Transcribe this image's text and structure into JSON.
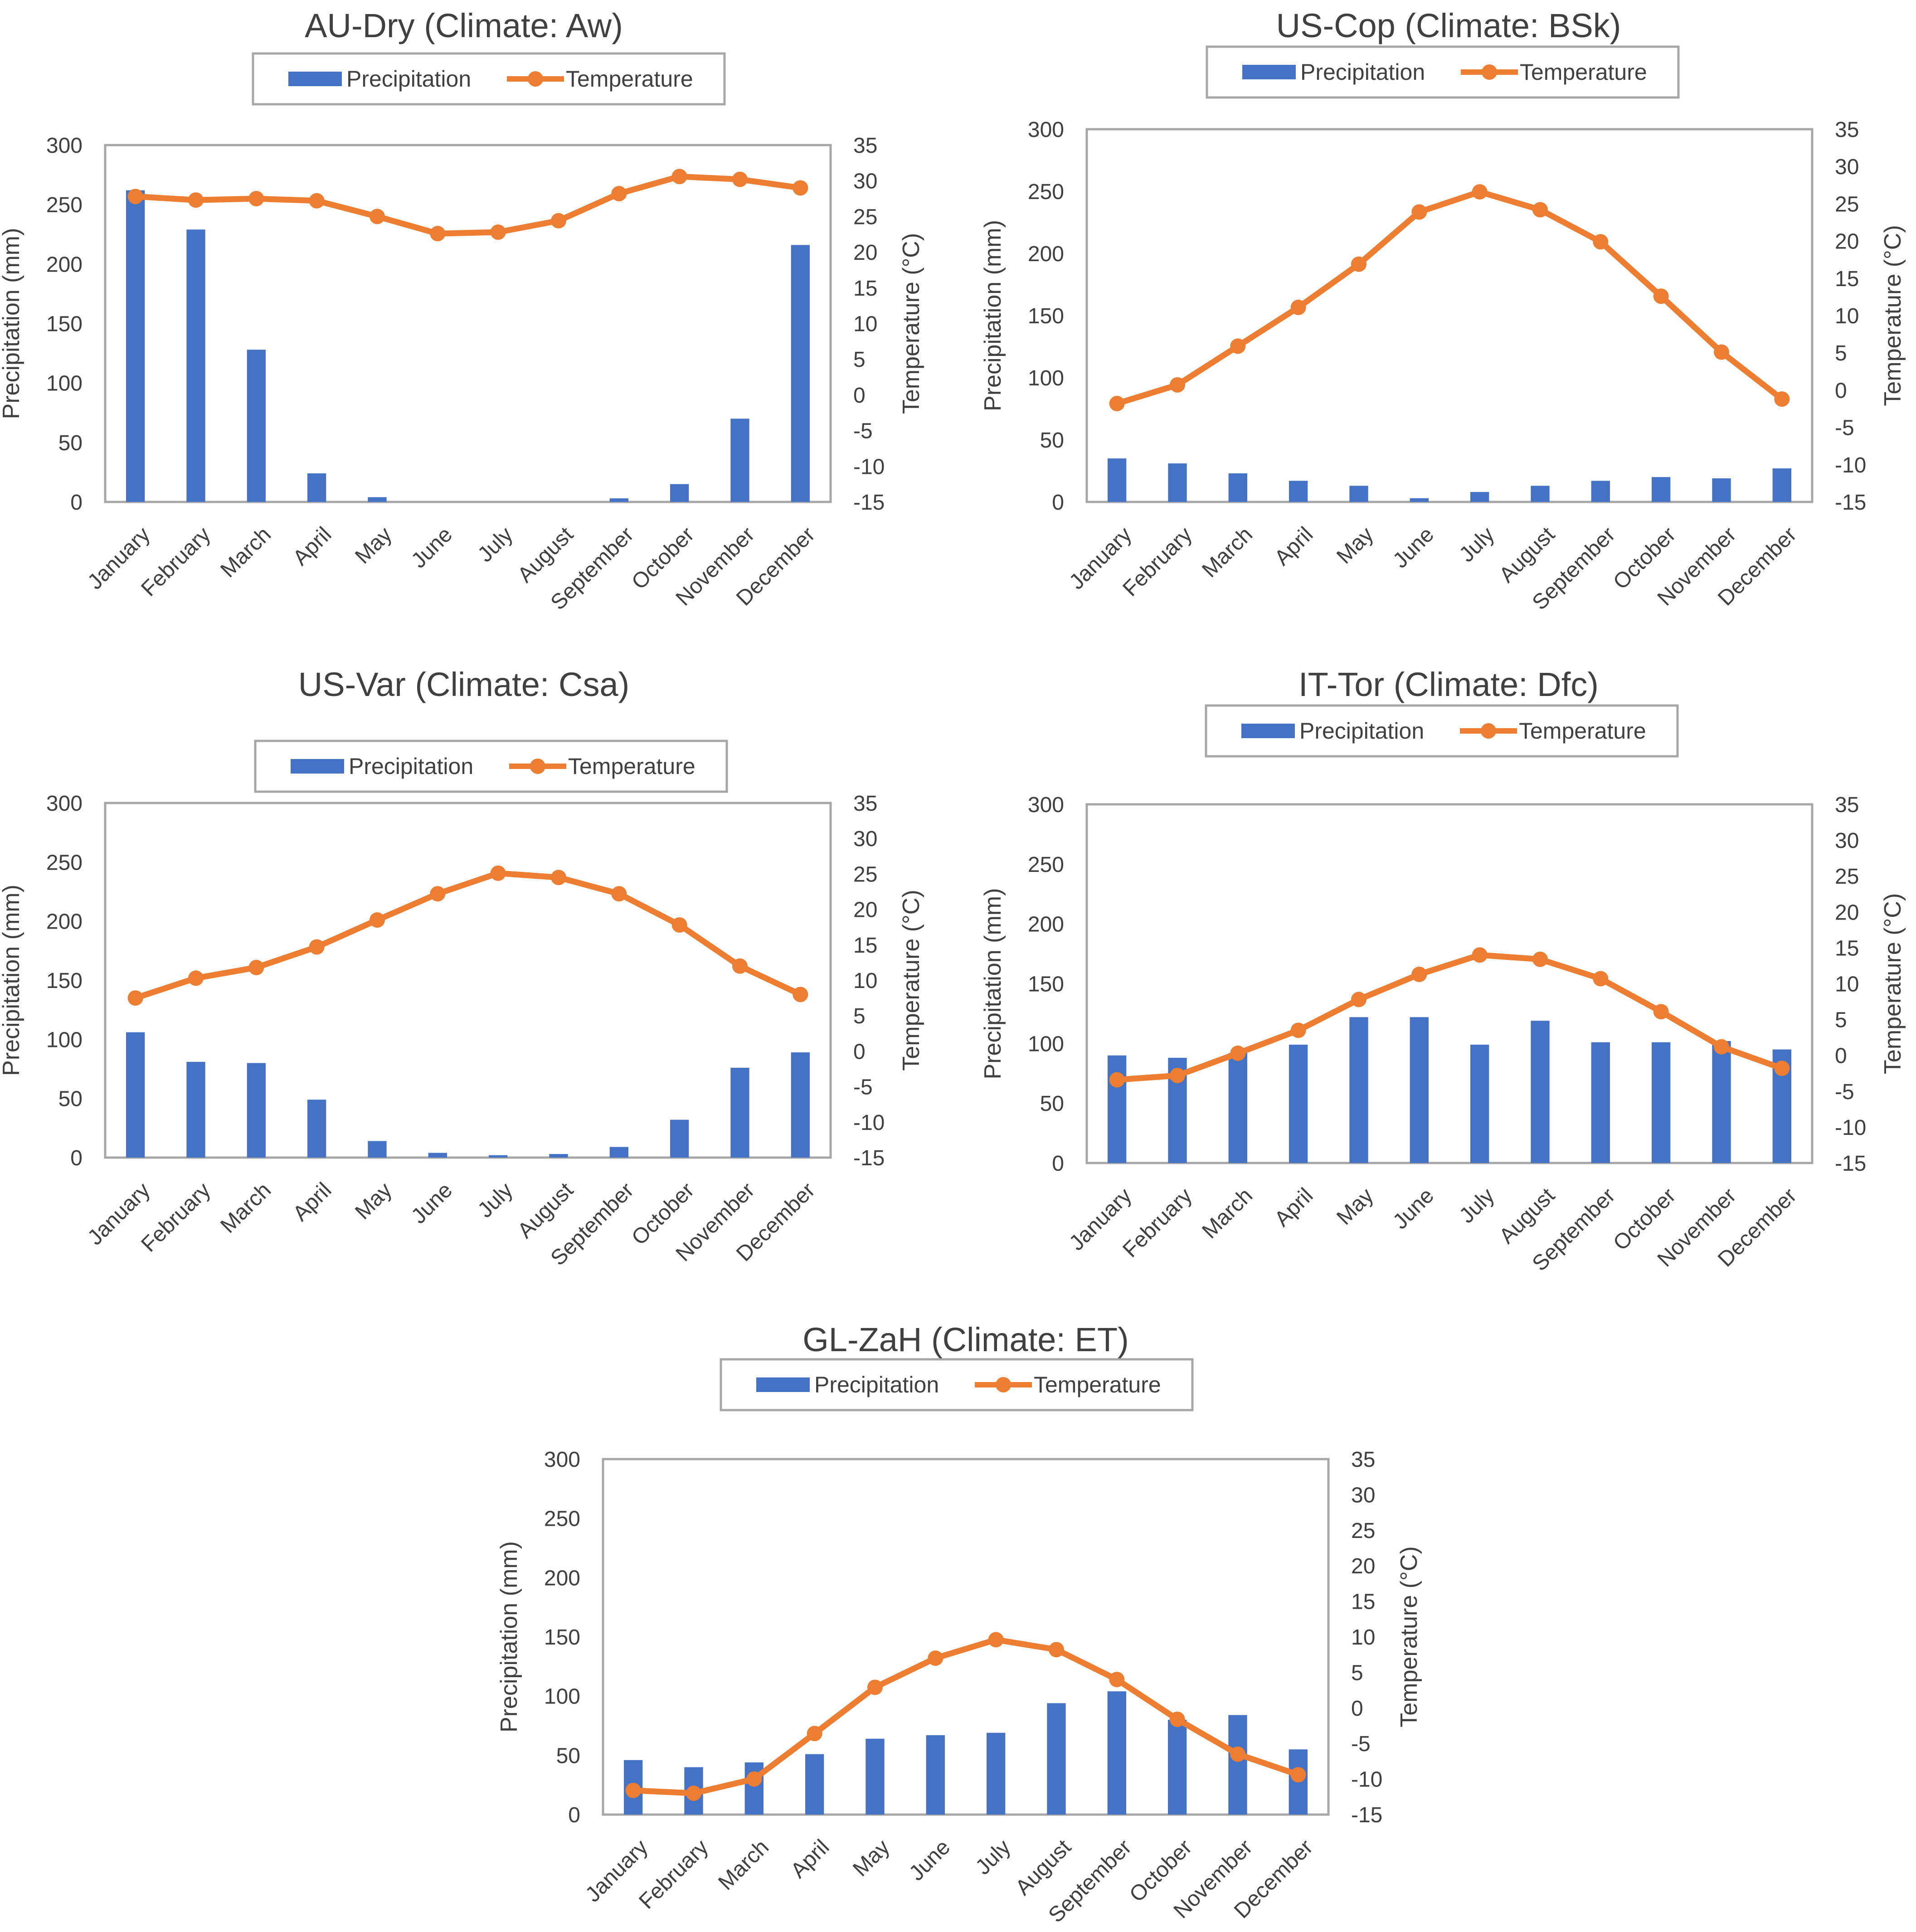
{
  "legend": {
    "precipitation": "Precipitation",
    "temperature": "Temperature"
  },
  "colors": {
    "bar": "#4472C4",
    "line": "#ED7D31",
    "axis": "#A6A6A6",
    "text": "#404040",
    "title": "#404040"
  },
  "months": [
    "January",
    "February",
    "March",
    "April",
    "May",
    "June",
    "July",
    "August",
    "September",
    "October",
    "November",
    "December"
  ],
  "chart_data": [
    {
      "type": "bar",
      "title": "AU-Dry (Climate: Aw)",
      "ylabel": "Precipitation (mm)",
      "y2label": "Temperature (°C)",
      "ylim": [
        0,
        300
      ],
      "y2lim": [
        -15,
        35
      ],
      "yticks": [
        "0",
        "50",
        "100",
        "150",
        "200",
        "250",
        "300"
      ],
      "y2ticks": [
        "-15",
        "-10",
        "-5",
        "0",
        "5",
        "10",
        "15",
        "20",
        "25",
        "30",
        "35"
      ],
      "series": [
        {
          "name": "Precipitation",
          "type": "bar",
          "values": [
            262,
            229,
            128,
            24,
            4,
            0,
            0,
            0,
            3,
            15,
            70,
            216
          ]
        },
        {
          "name": "Temperature",
          "type": "line",
          "values": [
            27.8,
            27.3,
            27.5,
            27.2,
            25.0,
            22.6,
            22.8,
            24.4,
            28.2,
            30.6,
            30.2,
            29.0
          ]
        }
      ]
    },
    {
      "type": "bar",
      "title": "US-Cop (Climate: BSk)",
      "ylabel": "Precipitation (mm)",
      "y2label": "Temperature (°C)",
      "ylim": [
        0,
        300
      ],
      "y2lim": [
        -15,
        35
      ],
      "yticks": [
        "0",
        "50",
        "100",
        "150",
        "200",
        "250",
        "300"
      ],
      "y2ticks": [
        "-15",
        "-10",
        "-5",
        "0",
        "5",
        "10",
        "15",
        "20",
        "25",
        "30",
        "35"
      ],
      "series": [
        {
          "name": "Precipitation",
          "type": "bar",
          "values": [
            35,
            31,
            23,
            17,
            13,
            3,
            8,
            13,
            17,
            20,
            19,
            27
          ]
        },
        {
          "name": "Temperature",
          "type": "line",
          "values": [
            -1.8,
            0.7,
            5.9,
            11.1,
            16.9,
            23.9,
            26.6,
            24.2,
            19.9,
            12.6,
            5.1,
            -1.2
          ]
        }
      ]
    },
    {
      "type": "bar",
      "title": "US-Var (Climate: Csa)",
      "ylabel": "Precipitation (mm)",
      "y2label": "Temperature (°C)",
      "ylim": [
        0,
        300
      ],
      "y2lim": [
        -15,
        35
      ],
      "yticks": [
        "0",
        "50",
        "100",
        "150",
        "200",
        "250",
        "300"
      ],
      "y2ticks": [
        "-15",
        "-10",
        "-5",
        "0",
        "5",
        "10",
        "15",
        "20",
        "25",
        "30",
        "35"
      ],
      "series": [
        {
          "name": "Precipitation",
          "type": "bar",
          "values": [
            106,
            81,
            80,
            49,
            14,
            4,
            2,
            3,
            9,
            32,
            76,
            89
          ]
        },
        {
          "name": "Temperature",
          "type": "line",
          "values": [
            7.5,
            10.3,
            11.8,
            14.7,
            18.5,
            22.2,
            25.1,
            24.5,
            22.2,
            17.8,
            12.0,
            8.0
          ]
        }
      ]
    },
    {
      "type": "bar",
      "title": "IT-Tor (Climate: Dfc)",
      "ylabel": "Precipitation (mm)",
      "y2label": "Temperature (°C)",
      "ylim": [
        0,
        300
      ],
      "y2lim": [
        -15,
        35
      ],
      "yticks": [
        "0",
        "50",
        "100",
        "150",
        "200",
        "250",
        "300"
      ],
      "y2ticks": [
        "-15",
        "-10",
        "-5",
        "0",
        "5",
        "10",
        "15",
        "20",
        "25",
        "30",
        "35"
      ],
      "series": [
        {
          "name": "Precipitation",
          "type": "bar",
          "values": [
            90,
            88,
            92,
            99,
            122,
            122,
            99,
            119,
            101,
            101,
            102,
            95
          ]
        },
        {
          "name": "Temperature",
          "type": "line",
          "values": [
            -3.4,
            -2.8,
            0.3,
            3.5,
            7.8,
            11.3,
            14.0,
            13.4,
            10.7,
            6.1,
            1.2,
            -1.8
          ]
        }
      ]
    },
    {
      "type": "bar",
      "title": "GL-ZaH  (Climate: ET)",
      "ylabel": "Precipitation (mm)",
      "y2label": "Temperature (°C)",
      "ylim": [
        0,
        300
      ],
      "y2lim": [
        -15,
        35
      ],
      "yticks": [
        "0",
        "50",
        "100",
        "150",
        "200",
        "250",
        "300"
      ],
      "y2ticks": [
        "-15",
        "-10",
        "-5",
        "0",
        "5",
        "10",
        "15",
        "20",
        "25",
        "30",
        "35"
      ],
      "series": [
        {
          "name": "Precipitation",
          "type": "bar",
          "values": [
            46,
            40,
            44,
            51,
            64,
            67,
            69,
            94,
            104,
            80,
            84,
            55
          ]
        },
        {
          "name": "Temperature",
          "type": "line",
          "values": [
            -11.6,
            -12.0,
            -10.0,
            -3.6,
            2.9,
            7.0,
            9.6,
            8.2,
            4.0,
            -1.6,
            -6.5,
            -9.4
          ]
        }
      ]
    }
  ]
}
